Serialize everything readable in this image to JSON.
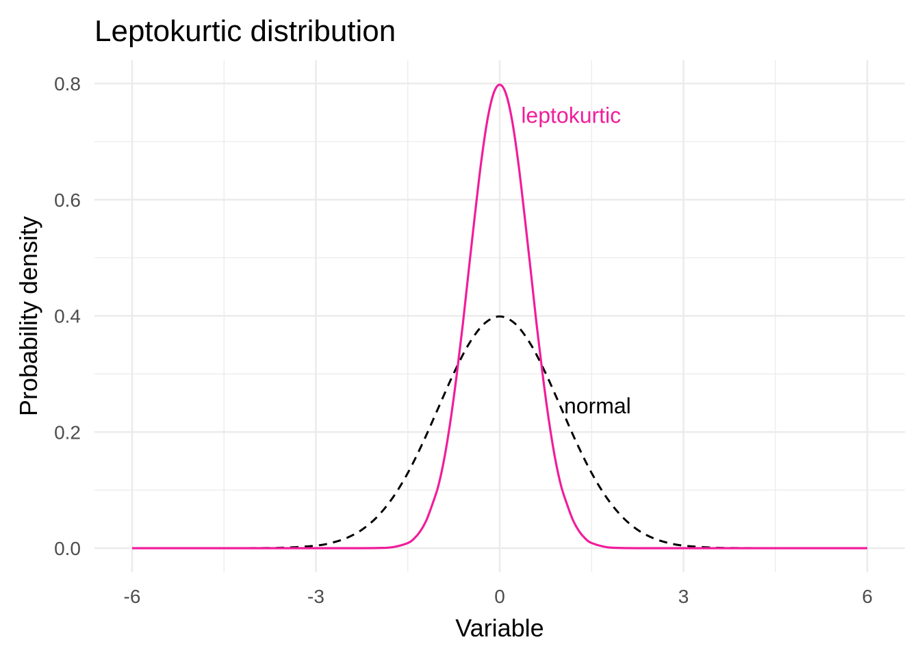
{
  "chart_data": {
    "type": "line",
    "title": "Leptokurtic distribution",
    "xlabel": "Variable",
    "ylabel": "Probability density",
    "xlim": [
      -6,
      6
    ],
    "ylim": [
      0,
      0.8
    ],
    "x_ticks": [
      -6,
      -3,
      0,
      3,
      6
    ],
    "x_tick_labels": [
      "-6",
      "-3",
      "0",
      "3",
      "6"
    ],
    "y_ticks": [
      0,
      0.2,
      0.4,
      0.6,
      0.8
    ],
    "y_tick_labels": [
      "0.0",
      "0.2",
      "0.4",
      "0.6",
      "0.8"
    ],
    "grid": true,
    "legend": "none",
    "series": [
      {
        "name": "leptokurtic",
        "color": "#f01d9b",
        "dash": "solid",
        "x": [
          -6,
          -5.5,
          -5,
          -4.5,
          -4,
          -3.5,
          -3,
          -2.5,
          -2,
          -1.75,
          -1.5,
          -1.4,
          -1.3,
          -1.2,
          -1.1,
          -1,
          -0.9,
          -0.8,
          -0.7,
          -0.6,
          -0.5,
          -0.4,
          -0.3,
          -0.2,
          -0.1,
          0,
          0.1,
          0.2,
          0.3,
          0.4,
          0.5,
          0.6,
          0.7,
          0.8,
          0.9,
          1,
          1.1,
          1.2,
          1.3,
          1.4,
          1.5,
          1.75,
          2,
          2.5,
          3,
          3.5,
          4,
          4.5,
          5,
          5.5,
          6
        ],
        "y": [
          0,
          0,
          0,
          0,
          0,
          0,
          0,
          0,
          0.0003,
          0.0017,
          0.0089,
          0.0163,
          0.0286,
          0.0473,
          0.0753,
          0.108,
          0.1571,
          0.2218,
          0.2998,
          0.3872,
          0.4839,
          0.5781,
          0.6668,
          0.7378,
          0.783,
          0.7979,
          0.783,
          0.7378,
          0.6668,
          0.5781,
          0.4839,
          0.3872,
          0.2998,
          0.2218,
          0.1571,
          0.108,
          0.0753,
          0.0473,
          0.0286,
          0.0163,
          0.0089,
          0.0017,
          0.0003,
          0,
          0,
          0,
          0,
          0,
          0,
          0,
          0
        ]
      },
      {
        "name": "normal",
        "color": "#000000",
        "dash": "dashed",
        "x": [
          -6,
          -5.5,
          -5,
          -4.5,
          -4,
          -3.5,
          -3,
          -2.75,
          -2.5,
          -2.25,
          -2,
          -1.75,
          -1.5,
          -1.25,
          -1,
          -0.75,
          -0.5,
          -0.25,
          0,
          0.25,
          0.5,
          0.75,
          1,
          1.25,
          1.5,
          1.75,
          2,
          2.25,
          2.5,
          2.75,
          3,
          3.5,
          4,
          4.5,
          5,
          5.5,
          6
        ],
        "y": [
          0,
          0,
          0,
          0,
          0.0001,
          0.0009,
          0.0044,
          0.0091,
          0.0175,
          0.0317,
          0.054,
          0.0863,
          0.1295,
          0.1826,
          0.242,
          0.3011,
          0.3521,
          0.3867,
          0.3989,
          0.3867,
          0.3521,
          0.3011,
          0.242,
          0.1826,
          0.1295,
          0.0863,
          0.054,
          0.0317,
          0.0175,
          0.0091,
          0.0044,
          0.0009,
          0.0001,
          0,
          0,
          0,
          0
        ]
      }
    ],
    "annotations": [
      {
        "text": "leptokurtic",
        "x": 0.35,
        "y": 0.745,
        "color": "#f01d9b"
      },
      {
        "text": "normal",
        "x": 1.05,
        "y": 0.245,
        "color": "#000000"
      }
    ]
  }
}
